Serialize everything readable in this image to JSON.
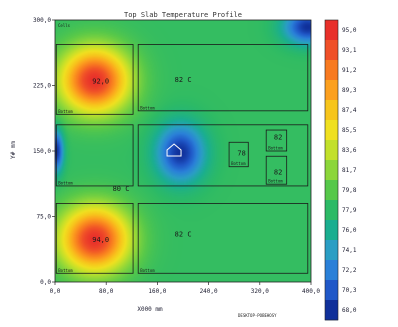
{
  "chart_data": {
    "type": "heatmap",
    "title": "Top Slab Temperature Profile",
    "xlabel": "X000 mm",
    "ylabel": "Y# mm",
    "xlim": [
      0,
      400
    ],
    "ylim": [
      0,
      300
    ],
    "x_ticks": [
      "0,0",
      "80,0",
      "160,0",
      "240,0",
      "320,0",
      "400,0"
    ],
    "y_ticks": [
      "0,0",
      "75,0",
      "150,0",
      "225,0",
      "300,0"
    ],
    "corner_label": "Cells",
    "footer_text": "DESKTOP-POBEHOSY",
    "colorbar": {
      "ticks": [
        "95,0",
        "93,1",
        "91,2",
        "89,3",
        "87,4",
        "85,5",
        "83,6",
        "81,7",
        "79,8",
        "77,9",
        "76,0",
        "74,1",
        "72,2",
        "70,3",
        "68,0"
      ],
      "colors": [
        "#e8302a",
        "#f05028",
        "#f87a20",
        "#fca01e",
        "#f7c51c",
        "#f0e020",
        "#c2e02a",
        "#8cd63a",
        "#56c84a",
        "#2cba66",
        "#1aae90",
        "#2a9ec4",
        "#2a80d8",
        "#2058c8",
        "#10309a"
      ]
    },
    "hot_spots": [
      {
        "x": 62,
        "y": 231,
        "rx": 58,
        "ry": 40,
        "peak": 95,
        "label": "92,0"
      },
      {
        "x": 62,
        "y": 49,
        "rx": 58,
        "ry": 40,
        "peak": 95,
        "label": "94,0"
      }
    ],
    "cold_spots": [
      {
        "x": 196,
        "y": 148,
        "rx": 46,
        "ry": 40,
        "peak": 68
      },
      {
        "x": 2,
        "y": 150,
        "rx": 14,
        "ry": 30,
        "peak": 68
      },
      {
        "x": 395,
        "y": 292,
        "rx": 46,
        "ry": 24,
        "peak": 68
      }
    ],
    "annotations": [
      {
        "x": 187,
        "y": 229,
        "text": "82 C"
      },
      {
        "x": 187,
        "y": 52,
        "text": "82 C"
      },
      {
        "x": 90,
        "y": 104,
        "text": "80 C"
      },
      {
        "x": 285,
        "y": 145,
        "text": "78"
      },
      {
        "x": 342,
        "y": 163,
        "text": "82"
      },
      {
        "x": 342,
        "y": 123,
        "text": "82"
      }
    ],
    "zones": [
      {
        "x0": 2,
        "y0": 192,
        "x1": 122,
        "y1": 272,
        "name": "Bottom"
      },
      {
        "x0": 130,
        "y0": 196,
        "x1": 395,
        "y1": 272,
        "name": "Bottom"
      },
      {
        "x0": 2,
        "y0": 110,
        "x1": 122,
        "y1": 180,
        "name": "Bottom"
      },
      {
        "x0": 130,
        "y0": 110,
        "x1": 395,
        "y1": 180,
        "name": ""
      },
      {
        "x0": 272,
        "y0": 132,
        "x1": 302,
        "y1": 160,
        "name": "Bottom"
      },
      {
        "x0": 330,
        "y0": 150,
        "x1": 362,
        "y1": 174,
        "name": "Bottom"
      },
      {
        "x0": 330,
        "y0": 112,
        "x1": 362,
        "y1": 144,
        "name": "Bottom"
      },
      {
        "x0": 2,
        "y0": 10,
        "x1": 122,
        "y1": 90,
        "name": "Bottom"
      },
      {
        "x0": 130,
        "y0": 10,
        "x1": 395,
        "y1": 90,
        "name": "Bottom"
      }
    ]
  }
}
